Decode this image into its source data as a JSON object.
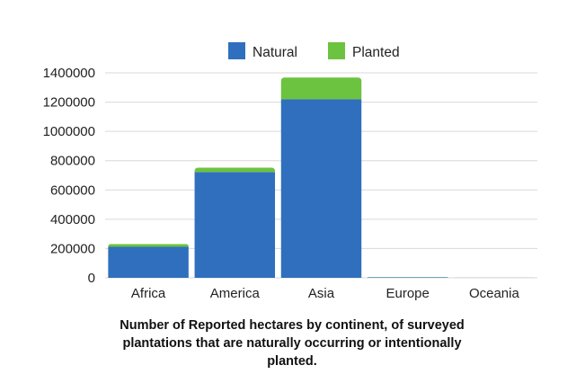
{
  "chart_data": {
    "type": "bar",
    "stacked": true,
    "categories": [
      "Africa",
      "America",
      "Asia",
      "Europe",
      "Oceania"
    ],
    "series": [
      {
        "name": "Natural",
        "color": "#2f6fbe",
        "values": [
          212000,
          722000,
          1220000,
          3000,
          500
        ]
      },
      {
        "name": "Planted",
        "color": "#6cc33f",
        "values": [
          18000,
          30000,
          148000,
          1500,
          200
        ]
      }
    ],
    "ylim": [
      0,
      1400000
    ],
    "yticks": [
      "0",
      "200000",
      "400000",
      "600000",
      "800000",
      "1000000",
      "1200000",
      "1400000"
    ],
    "grid": true,
    "legend": "top-center",
    "title": "Number of Reported hectares by continent,  of surveyed plantations that are naturally occurring or intentionally planted."
  },
  "caption_lines": [
    "Number of Reported hectares by continent,  of surveyed",
    "plantations that are naturally occurring or intentionally",
    "planted."
  ]
}
